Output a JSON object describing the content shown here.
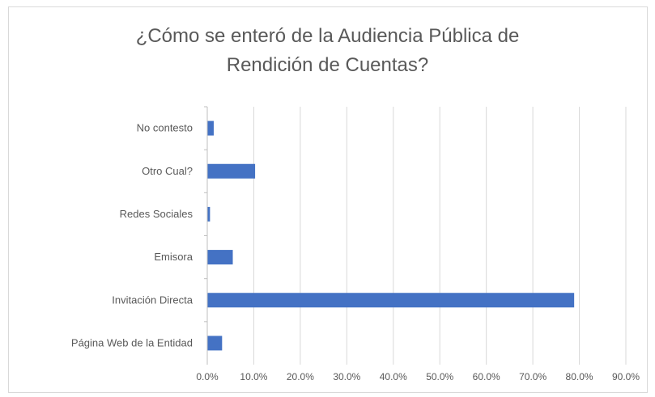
{
  "chart_data": {
    "type": "bar",
    "orientation": "horizontal",
    "title_lines": [
      "¿Cómo se enteró de la Audiencia Pública de",
      "Rendición de Cuentas?"
    ],
    "categories": [
      "No contesto",
      "Otro Cual?",
      "Redes Sociales",
      "Emisora",
      "Invitación Directa",
      "Página Web de la Entidad"
    ],
    "values": [
      0.013,
      0.102,
      0.005,
      0.054,
      0.788,
      0.031
    ],
    "xlim": [
      0,
      0.9
    ],
    "x_ticks": [
      0,
      0.1,
      0.2,
      0.3,
      0.4,
      0.5,
      0.6,
      0.7,
      0.8,
      0.9
    ],
    "x_tick_labels": [
      "0.0%",
      "10.0%",
      "20.0%",
      "30.0%",
      "40.0%",
      "50.0%",
      "60.0%",
      "70.0%",
      "80.0%",
      "90.0%"
    ],
    "grid": "vertical",
    "bar_color": "#4472c4",
    "legend": "none"
  }
}
